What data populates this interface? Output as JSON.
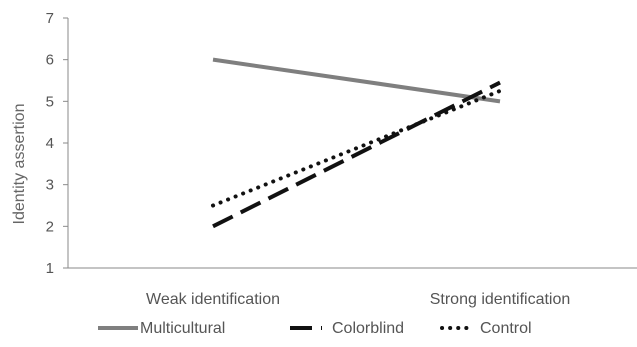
{
  "chart_data": {
    "type": "line",
    "categories": [
      "Weak identification",
      "Strong identification"
    ],
    "series": [
      {
        "name": "Multicultural",
        "values": [
          6.0,
          5.0
        ],
        "color": "#7f7f7f",
        "dash": "solid"
      },
      {
        "name": "Colorblind",
        "values": [
          2.0,
          5.45
        ],
        "color": "#111111",
        "dash": "dashed"
      },
      {
        "name": "Control",
        "values": [
          2.5,
          5.25
        ],
        "color": "#111111",
        "dash": "dotted"
      }
    ],
    "title": "",
    "xlabel": "",
    "ylabel": "Identity assertion",
    "ylim": [
      1,
      7
    ],
    "yticks": [
      1,
      2,
      3,
      4,
      5,
      6,
      7
    ],
    "grid": false,
    "legend_position": "bottom"
  }
}
